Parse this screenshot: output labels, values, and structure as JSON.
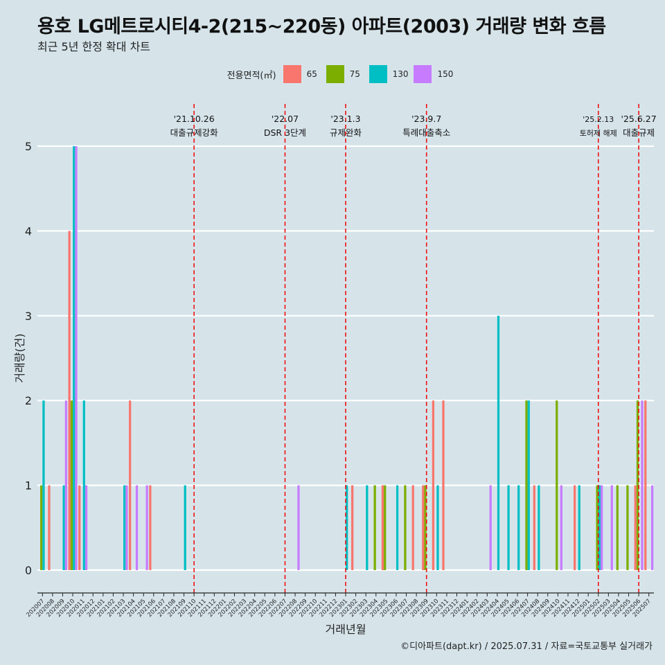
{
  "title": "용호 LG메트로시티4-2(215~220동) 아파트(2003) 거래량 변화 흐름",
  "subtitle": "최근 5년 한정 확대 차트",
  "caption": "©디아파트(dapt.kr) / 2025.07.31 / 자료=국토교통부 실거래가",
  "legend": {
    "title": "전용면적(㎡)",
    "items": [
      {
        "label": "65",
        "color": "#f8766d"
      },
      {
        "label": "75",
        "color": "#7cae00"
      },
      {
        "label": "130",
        "color": "#00bfc4"
      },
      {
        "label": "150",
        "color": "#c77cff"
      }
    ]
  },
  "chart_data": {
    "type": "bar",
    "xlabel": "거래년월",
    "ylabel": "거래량(건)",
    "ylim": [
      0,
      5
    ],
    "yticks": [
      0,
      1,
      2,
      3,
      4,
      5
    ],
    "grid": true,
    "legend_position": "top",
    "categories": [
      "202007",
      "202008",
      "202009",
      "202010",
      "202011",
      "202012",
      "202101",
      "202102",
      "202103",
      "202104",
      "202105",
      "202106",
      "202107",
      "202108",
      "202109",
      "202110",
      "202111",
      "202112",
      "202201",
      "202202",
      "202203",
      "202204",
      "202205",
      "202206",
      "202207",
      "202208",
      "202209",
      "202210",
      "202211",
      "202212",
      "202301",
      "202302",
      "202303",
      "202304",
      "202305",
      "202306",
      "202307",
      "202308",
      "202309",
      "202310",
      "202311",
      "202312",
      "202401",
      "202402",
      "202403",
      "202404",
      "202405",
      "202406",
      "202407",
      "202408",
      "202409",
      "202410",
      "202411",
      "202412",
      "202501",
      "202502",
      "202503",
      "202504",
      "202505",
      "202506",
      "202507"
    ],
    "series": [
      {
        "name": "65",
        "values": [
          0,
          1,
          0,
          4,
          1,
          0,
          0,
          0,
          0,
          2,
          0,
          1,
          0,
          0,
          0,
          0,
          0,
          0,
          0,
          0,
          0,
          0,
          0,
          0,
          0,
          0,
          0,
          0,
          0,
          0,
          0,
          1,
          0,
          0,
          1,
          0,
          0,
          1,
          1,
          2,
          2,
          0,
          0,
          0,
          0,
          0,
          0,
          0,
          0,
          1,
          0,
          0,
          0,
          1,
          0,
          0,
          0,
          0,
          0,
          1,
          2
        ]
      },
      {
        "name": "75",
        "values": [
          1,
          0,
          0,
          2,
          0,
          0,
          0,
          0,
          0,
          0,
          0,
          0,
          0,
          0,
          0,
          0,
          0,
          0,
          0,
          0,
          0,
          0,
          0,
          0,
          0,
          0,
          0,
          0,
          0,
          0,
          0,
          0,
          0,
          1,
          1,
          0,
          1,
          0,
          1,
          0,
          0,
          0,
          0,
          0,
          0,
          0,
          0,
          0,
          2,
          0,
          0,
          2,
          0,
          0,
          0,
          1,
          0,
          1,
          1,
          2,
          0
        ]
      },
      {
        "name": "130",
        "values": [
          2,
          0,
          1,
          5,
          2,
          0,
          0,
          0,
          1,
          0,
          0,
          0,
          0,
          0,
          1,
          0,
          0,
          0,
          0,
          0,
          0,
          0,
          0,
          0,
          0,
          0,
          0,
          0,
          0,
          0,
          1,
          0,
          1,
          0,
          0,
          1,
          0,
          0,
          0,
          1,
          0,
          0,
          0,
          0,
          0,
          3,
          1,
          1,
          2,
          1,
          0,
          0,
          0,
          1,
          0,
          1,
          0,
          0,
          0,
          0,
          0
        ]
      },
      {
        "name": "150",
        "values": [
          0,
          0,
          2,
          5,
          1,
          0,
          0,
          0,
          1,
          1,
          1,
          0,
          0,
          0,
          0,
          0,
          0,
          0,
          0,
          0,
          0,
          0,
          0,
          0,
          0,
          1,
          0,
          0,
          0,
          0,
          0,
          0,
          0,
          0,
          0,
          0,
          0,
          0,
          0,
          0,
          0,
          0,
          0,
          0,
          1,
          0,
          0,
          0,
          0,
          0,
          0,
          1,
          0,
          0,
          0,
          1,
          1,
          0,
          0,
          2,
          1
        ]
      }
    ],
    "annotations": [
      {
        "at": "202110",
        "date": "'21.10.26",
        "text": "대출규제강화"
      },
      {
        "at": "202207",
        "date": "'22.07",
        "text": "DSR 3단계"
      },
      {
        "at": "202301",
        "date": "'23.1.3",
        "text": "규제완화"
      },
      {
        "at": "202309",
        "date": "'23.9.7",
        "text": "특례대출축소"
      },
      {
        "at": "202502",
        "date": "'25.2.13",
        "text": "토허제 해제"
      },
      {
        "at": "202506",
        "date": "'25.6.27",
        "text": "대출규제"
      }
    ]
  }
}
